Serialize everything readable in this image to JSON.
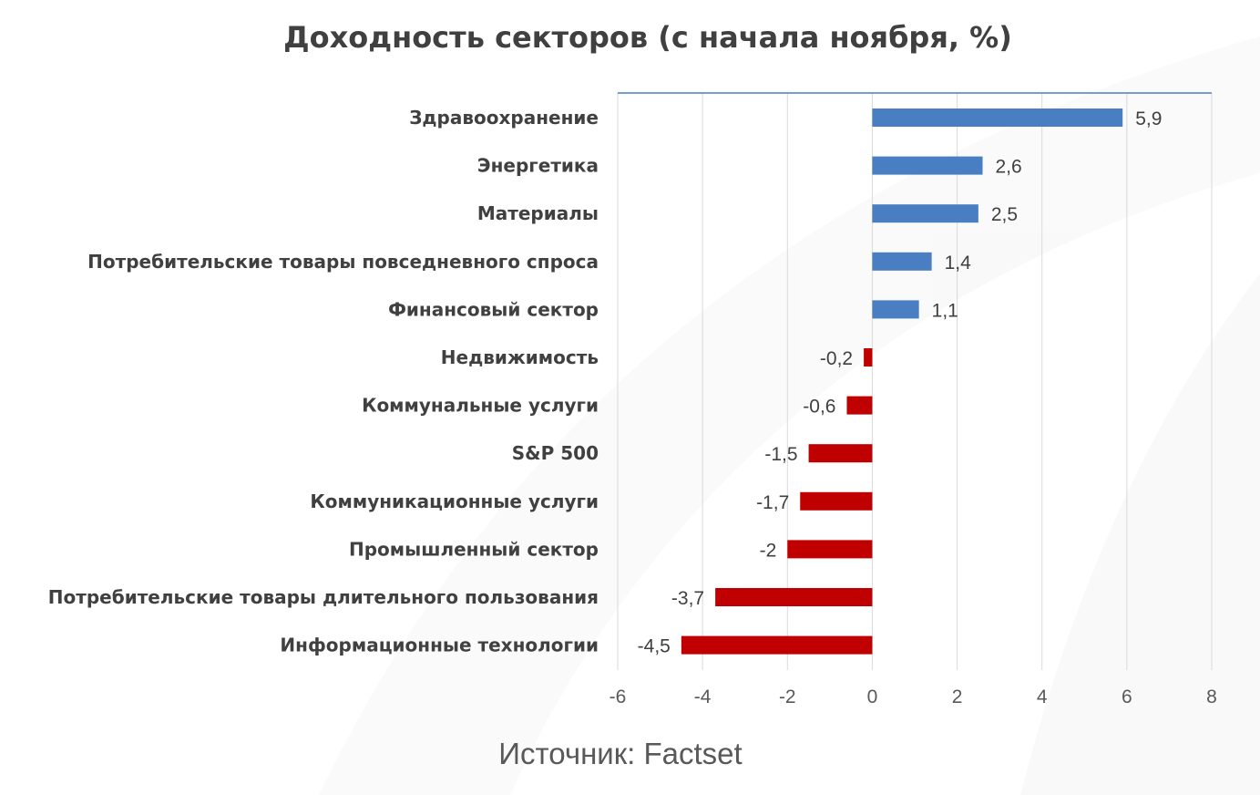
{
  "chart_data": {
    "type": "bar",
    "orientation": "horizontal",
    "title": "Доходность секторов (с начала ноября, %)",
    "categories": [
      "Здравоохранение",
      "Энергетика",
      "Материалы",
      "Потребительские товары повседневного спроса",
      "Финансовый сектор",
      "Недвижимость",
      "Коммунальные услуги",
      "S&P 500",
      "Коммуникационные услуги",
      "Промышленный сектор",
      "Потребительские товары длительного пользования",
      "Информационные технологии"
    ],
    "values": [
      5.9,
      2.6,
      2.5,
      1.4,
      1.1,
      -0.2,
      -0.6,
      -1.5,
      -1.7,
      -2,
      -3.7,
      -4.5
    ],
    "value_labels": [
      "5,9",
      "2,6",
      "2,5",
      "1,4",
      "1,1",
      "-0,2",
      "-0,6",
      "-1,5",
      "-1,7",
      "-2",
      "-3,7",
      "-4,5"
    ],
    "xlim": [
      -6,
      8
    ],
    "xticks": [
      -6,
      -4,
      -2,
      0,
      2,
      4,
      6,
      8
    ],
    "grid": "vertical",
    "colors": {
      "positive": "#4A7EC2",
      "negative": "#C00000"
    },
    "source": "Источник: Factset"
  }
}
